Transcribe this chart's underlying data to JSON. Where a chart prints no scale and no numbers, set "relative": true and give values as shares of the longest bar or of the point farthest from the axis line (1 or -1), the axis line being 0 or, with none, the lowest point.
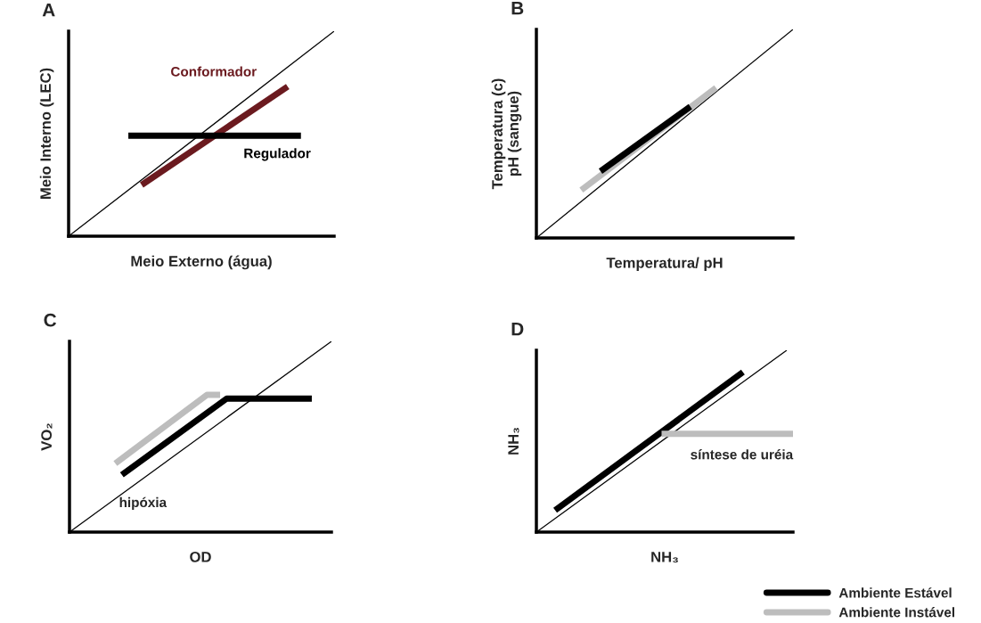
{
  "chart_data": [
    {
      "type": "line",
      "title": "A",
      "xlabel": "Meio Externo (água)",
      "ylabel": "Meio Interno (LEC)",
      "relative": true,
      "legend": false,
      "categories": [
        null,
        null,
        null,
        null,
        null,
        null,
        null,
        null,
        null,
        null,
        null,
        null,
        null,
        null,
        null,
        null,
        null,
        null,
        null,
        null,
        null,
        null,
        null,
        null,
        null,
        null,
        null,
        null,
        null,
        null,
        null,
        null,
        null,
        null,
        null,
        null,
        null,
        null,
        null,
        null,
        null
      ],
      "series": [
        {
          "color": "#000000",
          "values": [
            0,
            null,
            null,
            null,
            null,
            null,
            null,
            null,
            null,
            null,
            null,
            null,
            null,
            null,
            null,
            null,
            null,
            null,
            null,
            null,
            null,
            null,
            null,
            null,
            null,
            null,
            null,
            null,
            null,
            null,
            null,
            null,
            null,
            null,
            null,
            null,
            null,
            null,
            null,
            null,
            1
          ]
        },
        {
          "name": "Conformador",
          "color": "#6b1a1f",
          "values": [
            null,
            null,
            null,
            null,
            null,
            null,
            null,
            null,
            null,
            null,
            null,
            0.25,
            null,
            null,
            null,
            null,
            null,
            null,
            null,
            null,
            null,
            null,
            null,
            null,
            null,
            null,
            null,
            null,
            null,
            null,
            null,
            null,
            null,
            0.73,
            null,
            null,
            null,
            null,
            null,
            null,
            null
          ]
        },
        {
          "name": "Regulador",
          "color": "#000000",
          "values": [
            null,
            null,
            null,
            null,
            null,
            null,
            null,
            null,
            null,
            0.49,
            null,
            null,
            null,
            null,
            null,
            null,
            null,
            null,
            null,
            null,
            null,
            null,
            null,
            null,
            null,
            null,
            null,
            null,
            null,
            null,
            null,
            null,
            null,
            null,
            null,
            0.49,
            null,
            null,
            null,
            null,
            null
          ]
        }
      ]
    },
    {
      "type": "line",
      "title": "B",
      "xlabel": "Temperatura/ pH",
      "ylabel": "Temperatura (c)\npH (sangue)",
      "relative": true,
      "legend": false,
      "categories": [
        null,
        null,
        null,
        null,
        null,
        null,
        null,
        null,
        null,
        null,
        null,
        null,
        null,
        null,
        null,
        null,
        null,
        null,
        null,
        null,
        null,
        null,
        null,
        null,
        null,
        null,
        null,
        null,
        null,
        null,
        null,
        null,
        null,
        null,
        null,
        null,
        null,
        null,
        null,
        null,
        null
      ],
      "series": [
        {
          "color": "#000000",
          "values": [
            0,
            null,
            null,
            null,
            null,
            null,
            null,
            null,
            null,
            null,
            null,
            null,
            null,
            null,
            null,
            null,
            null,
            null,
            null,
            null,
            null,
            null,
            null,
            null,
            null,
            null,
            null,
            null,
            null,
            null,
            null,
            null,
            null,
            null,
            null,
            null,
            null,
            null,
            null,
            null,
            1
          ]
        },
        {
          "color": "#bdbdbd",
          "values": [
            null,
            null,
            null,
            null,
            null,
            null,
            null,
            0.23,
            null,
            null,
            null,
            null,
            null,
            null,
            null,
            null,
            null,
            null,
            null,
            null,
            null,
            null,
            null,
            null,
            null,
            null,
            null,
            null,
            0.72,
            null,
            null,
            null,
            null,
            null,
            null,
            null,
            null,
            null,
            null,
            null,
            null
          ]
        },
        {
          "color": "#000000",
          "values": [
            null,
            null,
            null,
            null,
            null,
            null,
            null,
            null,
            null,
            null,
            0.32,
            null,
            null,
            null,
            null,
            null,
            null,
            null,
            null,
            null,
            null,
            null,
            null,
            null,
            0.63,
            null,
            null,
            null,
            null,
            null,
            null,
            null,
            null,
            null,
            null,
            null,
            null,
            null,
            null,
            null,
            null
          ]
        }
      ]
    },
    {
      "type": "line",
      "title": "C",
      "xlabel": "OD",
      "ylabel": "VO₂",
      "relative": true,
      "legend": false,
      "annotations": [
        "hipóxia"
      ],
      "categories": [
        null,
        null,
        null,
        null,
        null,
        null,
        null,
        null,
        null,
        null,
        null,
        null,
        null,
        null,
        null,
        null,
        null,
        null,
        null,
        null,
        null,
        null,
        null,
        null,
        null,
        null,
        null,
        null,
        null,
        null,
        null,
        null,
        null,
        null,
        null,
        null,
        null,
        null,
        null,
        null,
        null
      ],
      "series": [
        {
          "color": "#000000",
          "values": [
            0,
            null,
            null,
            null,
            null,
            null,
            null,
            null,
            null,
            null,
            null,
            null,
            null,
            null,
            null,
            null,
            null,
            null,
            null,
            null,
            null,
            null,
            null,
            null,
            null,
            null,
            null,
            null,
            null,
            null,
            null,
            null,
            null,
            null,
            null,
            null,
            null,
            null,
            null,
            null,
            1
          ]
        },
        {
          "color": "#bdbdbd",
          "values": [
            null,
            null,
            null,
            null,
            null,
            null,
            null,
            0.36,
            null,
            null,
            null,
            null,
            null,
            null,
            null,
            null,
            null,
            null,
            null,
            null,
            null,
            0.72,
            null,
            0.72,
            null,
            null,
            null,
            null,
            null,
            null,
            null,
            null,
            null,
            null,
            null,
            null,
            null,
            null,
            null,
            null,
            null
          ]
        },
        {
          "color": "#000000",
          "values": [
            null,
            null,
            null,
            null,
            null,
            null,
            null,
            null,
            0.3,
            null,
            null,
            null,
            null,
            null,
            null,
            null,
            null,
            null,
            null,
            null,
            null,
            null,
            null,
            null,
            0.7,
            null,
            null,
            null,
            null,
            null,
            null,
            null,
            null,
            null,
            null,
            null,
            null,
            0.7,
            null,
            null,
            null
          ]
        }
      ]
    },
    {
      "type": "line",
      "title": "D",
      "xlabel": "NH₃",
      "ylabel": "NH₃",
      "relative": true,
      "legend": "bottom right",
      "annotations": [
        "síntese de uréia"
      ],
      "categories": [
        null,
        null,
        null,
        null,
        null,
        null,
        null,
        null,
        null,
        null,
        null,
        null,
        null,
        null,
        null,
        null,
        null,
        null,
        null,
        null,
        null,
        null,
        null,
        null,
        null,
        null,
        null,
        null,
        null,
        null,
        null,
        null,
        null,
        null,
        null,
        null,
        null,
        null,
        null,
        null,
        null,
        null
      ],
      "series": [
        {
          "color": "#000000",
          "values": [
            0,
            null,
            null,
            null,
            null,
            null,
            null,
            null,
            null,
            null,
            null,
            null,
            null,
            null,
            null,
            null,
            null,
            null,
            null,
            null,
            null,
            null,
            null,
            null,
            null,
            null,
            null,
            null,
            null,
            null,
            null,
            null,
            null,
            null,
            null,
            null,
            null,
            null,
            null,
            null,
            1,
            null
          ]
        },
        {
          "name": "Ambiente Estável",
          "color": "#000000",
          "values": [
            null,
            null,
            null,
            0.12,
            null,
            null,
            null,
            null,
            null,
            null,
            null,
            null,
            null,
            null,
            null,
            null,
            null,
            null,
            null,
            null,
            null,
            null,
            null,
            null,
            null,
            null,
            null,
            null,
            null,
            null,
            null,
            null,
            null,
            0.88,
            null,
            null,
            null,
            null,
            null,
            null,
            null,
            null
          ]
        },
        {
          "name": "Ambiente Instável",
          "color": "#bdbdbd",
          "values": [
            null,
            null,
            null,
            null,
            null,
            null,
            null,
            null,
            null,
            null,
            null,
            null,
            null,
            null,
            null,
            null,
            null,
            null,
            null,
            null,
            0.54,
            null,
            null,
            null,
            null,
            null,
            null,
            null,
            null,
            null,
            null,
            null,
            null,
            null,
            null,
            null,
            null,
            null,
            null,
            null,
            null,
            0.54
          ]
        }
      ]
    }
  ]
}
